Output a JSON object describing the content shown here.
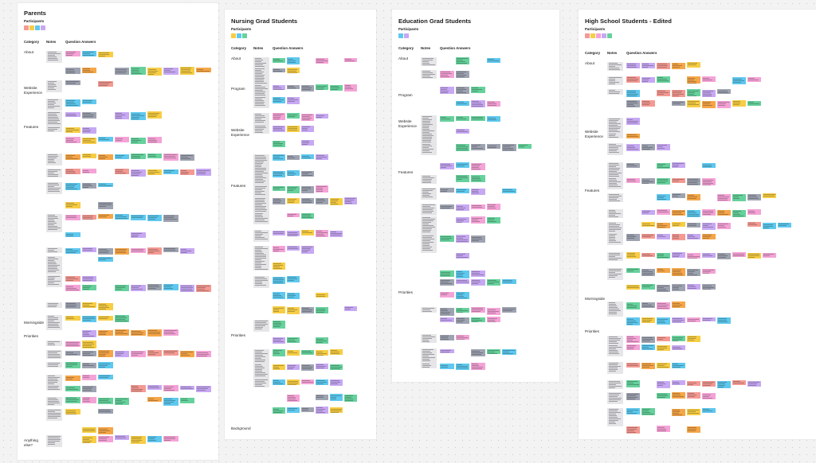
{
  "board": {
    "palette": {
      "yellow": "#f7cd45",
      "orange": "#f5a648",
      "salmon": "#f49a93",
      "pink": "#f4a3d6",
      "purple": "#c7a8f3",
      "blue": "#5ec8ee",
      "green": "#66d19c",
      "gray": "#9ea3b1"
    },
    "note_color": "#e6e6e8",
    "column_headers": [
      "Category",
      "Notes",
      "Question Answers"
    ],
    "participants_label": "Participants",
    "frames": [
      {
        "title": "Parents",
        "participants": [
          "salmon",
          "yellow",
          "blue",
          "purple"
        ],
        "categories": [
          "About",
          "Website\nExperience",
          "Features",
          "Morningside",
          "Priorities",
          "Anything\nelse?"
        ],
        "sticky_colors": [
          "salmon",
          "yellow",
          "blue",
          "purple",
          "green",
          "gray",
          "orange",
          "pink"
        ]
      },
      {
        "title": "Nursing Grad Students",
        "participants": [
          "yellow",
          "blue",
          "green"
        ],
        "categories": [
          "About",
          "Program",
          "Website\nExperience",
          "Features",
          "Priorities",
          "Background"
        ],
        "sticky_colors": [
          "yellow",
          "blue",
          "green",
          "gray",
          "pink",
          "purple"
        ]
      },
      {
        "title": "Education Grad Students",
        "participants": [
          "blue",
          "purple"
        ],
        "categories": [
          "About",
          "Program",
          "Website\nExperience",
          "Features",
          "Priorities"
        ],
        "sticky_colors": [
          "blue",
          "purple",
          "gray",
          "pink",
          "green"
        ]
      },
      {
        "title": "High School Students - Edited",
        "participants": [
          "salmon",
          "yellow",
          "pink",
          "purple",
          "green"
        ],
        "categories": [
          "About",
          "Website\nExperience",
          "Features",
          "Morningside",
          "Priorities"
        ],
        "sticky_colors": [
          "salmon",
          "yellow",
          "blue",
          "purple",
          "green",
          "gray",
          "orange",
          "pink"
        ]
      }
    ]
  }
}
